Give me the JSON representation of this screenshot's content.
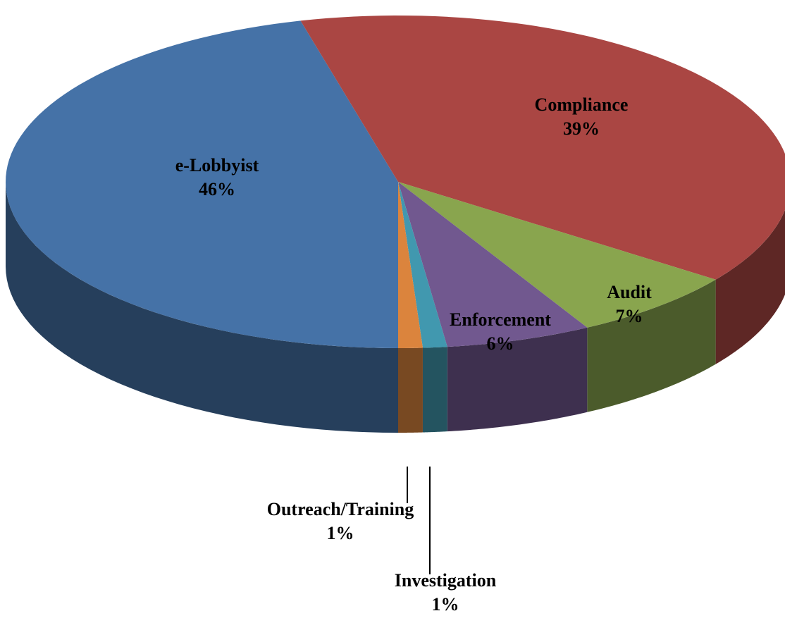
{
  "chart_data": {
    "type": "pie",
    "categories": [
      "e-Lobbyist",
      "Compliance",
      "Audit",
      "Enforcement",
      "Investigation",
      "Outreach/Training"
    ],
    "values": [
      46,
      39,
      7,
      6,
      1,
      1
    ],
    "value_labels": [
      "46%",
      "39%",
      "7%",
      "6%",
      "1%",
      "1%"
    ],
    "colors": [
      "#4572a7",
      "#aa4643",
      "#89a54e",
      "#71588f",
      "#4198af",
      "#db843d"
    ]
  }
}
